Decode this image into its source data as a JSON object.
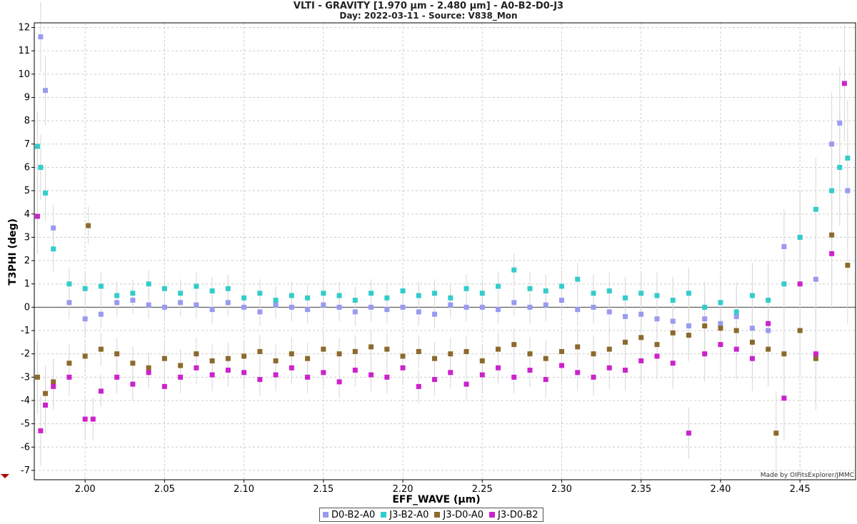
{
  "chart_data": {
    "type": "scatter",
    "title": "VLTI - GRAVITY [1.970 µm - 2.480 µm] - A0-B2-D0-J3",
    "subtitle": "Day: 2022-03-11 - Source: V838_Mon",
    "xlabel": "EFF_WAVE (µm)",
    "ylabel": "T3PHI (deg)",
    "xlim": [
      1.968,
      2.485
    ],
    "ylim": [
      -7.4,
      12.2
    ],
    "xticks": [
      2.0,
      2.05,
      2.1,
      2.15,
      2.2,
      2.25,
      2.3,
      2.35,
      2.4,
      2.45
    ],
    "xtick_labels": [
      "2.00",
      "2.05",
      "2.10",
      "2.15",
      "2.20",
      "2.25",
      "2.30",
      "2.35",
      "2.40",
      "2.45"
    ],
    "yticks": [
      -7,
      -6,
      -5,
      -4,
      -3,
      -2,
      -1,
      0,
      1,
      2,
      3,
      4,
      5,
      6,
      7,
      8,
      9,
      10,
      11,
      12
    ],
    "grid": true,
    "legend_position": "bottom-center",
    "credit": "Made by OIFitsExplorer/JMMC",
    "series": [
      {
        "name": "D0-B2-A0",
        "color": "#9a9af0",
        "x": [
          1.972,
          1.975,
          1.98,
          1.99,
          2.0,
          2.01,
          2.02,
          2.03,
          2.04,
          2.05,
          2.06,
          2.07,
          2.08,
          2.09,
          2.1,
          2.11,
          2.12,
          2.13,
          2.14,
          2.15,
          2.16,
          2.17,
          2.18,
          2.19,
          2.2,
          2.21,
          2.22,
          2.23,
          2.24,
          2.25,
          2.26,
          2.27,
          2.28,
          2.29,
          2.3,
          2.31,
          2.32,
          2.33,
          2.34,
          2.35,
          2.36,
          2.37,
          2.38,
          2.39,
          2.4,
          2.41,
          2.42,
          2.43,
          2.44,
          2.45,
          2.46,
          2.47,
          2.475,
          2.48
        ],
        "y": [
          11.6,
          9.3,
          3.4,
          0.2,
          -0.5,
          -0.3,
          0.2,
          0.3,
          0.1,
          0.0,
          0.2,
          0.1,
          -0.1,
          0.2,
          0.0,
          -0.2,
          0.1,
          0.0,
          -0.1,
          0.1,
          0.0,
          -0.2,
          0.0,
          -0.1,
          0.0,
          -0.2,
          -0.3,
          0.1,
          0.0,
          0.0,
          -0.1,
          0.2,
          0.0,
          0.1,
          0.3,
          -0.1,
          0.0,
          -0.2,
          -0.4,
          -0.3,
          -0.5,
          -0.6,
          -0.8,
          -0.5,
          -0.7,
          -0.4,
          -0.9,
          -1.0,
          2.6,
          3.0,
          1.2,
          7.0,
          7.9,
          5.0
        ],
        "errors": [
          1.5,
          1.5,
          1.0,
          0.7,
          0.7,
          0.6,
          0.6,
          0.6,
          0.6,
          0.6,
          0.6,
          0.6,
          0.6,
          0.6,
          0.6,
          0.6,
          0.6,
          0.6,
          0.6,
          0.6,
          0.6,
          0.6,
          0.6,
          0.6,
          0.6,
          0.6,
          0.6,
          0.6,
          0.6,
          0.6,
          0.6,
          0.6,
          0.7,
          0.7,
          0.7,
          0.7,
          0.7,
          0.8,
          0.8,
          0.9,
          0.9,
          1.0,
          1.0,
          1.1,
          1.1,
          1.2,
          1.3,
          1.4,
          1.6,
          1.8,
          2.0,
          2.2,
          2.4,
          2.5
        ]
      },
      {
        "name": "J3-B2-A0",
        "color": "#33cccc",
        "x": [
          1.97,
          1.972,
          1.975,
          1.98,
          1.99,
          2.0,
          2.01,
          2.02,
          2.03,
          2.04,
          2.05,
          2.06,
          2.07,
          2.08,
          2.09,
          2.1,
          2.11,
          2.12,
          2.13,
          2.14,
          2.15,
          2.16,
          2.17,
          2.18,
          2.19,
          2.2,
          2.21,
          2.22,
          2.23,
          2.24,
          2.25,
          2.26,
          2.27,
          2.28,
          2.29,
          2.3,
          2.31,
          2.32,
          2.33,
          2.34,
          2.35,
          2.36,
          2.37,
          2.38,
          2.39,
          2.4,
          2.41,
          2.42,
          2.43,
          2.44,
          2.45,
          2.46,
          2.47,
          2.475,
          2.48
        ],
        "y": [
          6.9,
          6.0,
          4.9,
          2.5,
          1.0,
          0.8,
          0.9,
          0.5,
          0.6,
          1.0,
          0.8,
          0.6,
          0.9,
          0.7,
          0.8,
          0.4,
          0.6,
          0.3,
          0.5,
          0.4,
          0.6,
          0.5,
          0.3,
          0.6,
          0.4,
          0.7,
          0.5,
          0.6,
          0.4,
          0.8,
          0.6,
          0.9,
          1.6,
          0.8,
          0.7,
          0.9,
          1.2,
          0.6,
          0.7,
          0.4,
          0.6,
          0.5,
          0.3,
          0.6,
          0.0,
          0.2,
          -0.2,
          0.5,
          0.3,
          1.0,
          3.0,
          4.2,
          5.0,
          6.0,
          6.4
        ],
        "errors": [
          1.5,
          1.4,
          1.2,
          1.0,
          0.7,
          0.7,
          0.6,
          0.6,
          0.6,
          0.6,
          0.6,
          0.6,
          0.6,
          0.6,
          0.6,
          0.6,
          0.6,
          0.6,
          0.6,
          0.6,
          0.6,
          0.6,
          0.6,
          0.6,
          0.6,
          0.6,
          0.6,
          0.6,
          0.6,
          0.6,
          0.6,
          0.6,
          0.7,
          0.7,
          0.7,
          0.7,
          0.7,
          0.8,
          0.8,
          0.9,
          0.9,
          1.0,
          1.0,
          1.1,
          1.1,
          1.2,
          1.3,
          1.4,
          1.6,
          1.8,
          2.0,
          2.2,
          2.4,
          2.5,
          2.5
        ]
      },
      {
        "name": "J3-D0-A0",
        "color": "#8c6a2c",
        "x": [
          1.97,
          1.975,
          1.98,
          1.99,
          2.0,
          2.002,
          2.01,
          2.02,
          2.03,
          2.04,
          2.05,
          2.06,
          2.07,
          2.08,
          2.09,
          2.1,
          2.11,
          2.12,
          2.13,
          2.14,
          2.15,
          2.16,
          2.17,
          2.18,
          2.19,
          2.2,
          2.21,
          2.22,
          2.23,
          2.24,
          2.25,
          2.26,
          2.27,
          2.28,
          2.29,
          2.3,
          2.31,
          2.32,
          2.33,
          2.34,
          2.35,
          2.36,
          2.37,
          2.38,
          2.39,
          2.4,
          2.41,
          2.42,
          2.43,
          2.435,
          2.44,
          2.45,
          2.46,
          2.47,
          2.48
        ],
        "y": [
          -3.0,
          -3.7,
          -3.2,
          -2.4,
          -2.1,
          3.5,
          -1.8,
          -2.0,
          -2.4,
          -2.6,
          -2.2,
          -2.5,
          -2.0,
          -2.3,
          -2.2,
          -2.1,
          -1.9,
          -2.3,
          -2.0,
          -2.2,
          -1.8,
          -2.0,
          -1.9,
          -1.7,
          -1.8,
          -2.1,
          -1.9,
          -2.2,
          -2.0,
          -1.9,
          -2.3,
          -1.8,
          -1.6,
          -2.0,
          -2.2,
          -1.9,
          -1.7,
          -2.0,
          -1.8,
          -1.5,
          -1.3,
          -1.6,
          -1.1,
          -1.2,
          -0.8,
          -0.9,
          -1.0,
          -1.5,
          -1.8,
          -5.4,
          -2.0,
          -1.0,
          -2.2,
          3.1,
          1.8
        ],
        "errors": [
          1.6,
          1.2,
          1.0,
          0.8,
          0.7,
          0.8,
          0.7,
          0.7,
          0.7,
          0.7,
          0.7,
          0.7,
          0.7,
          0.7,
          0.7,
          0.7,
          0.7,
          0.7,
          0.7,
          0.7,
          0.7,
          0.7,
          0.7,
          0.7,
          0.7,
          0.7,
          0.7,
          0.7,
          0.7,
          0.7,
          0.7,
          0.7,
          0.7,
          0.7,
          0.8,
          0.8,
          0.8,
          0.8,
          0.9,
          0.9,
          1.0,
          1.0,
          1.1,
          1.1,
          1.2,
          1.2,
          1.3,
          1.4,
          1.6,
          1.8,
          1.9,
          2.0,
          2.2,
          2.4,
          2.5
        ]
      },
      {
        "name": "J3-D0-B2",
        "color": "#cc22cc",
        "x": [
          1.97,
          1.972,
          1.975,
          1.98,
          1.99,
          2.0,
          2.005,
          2.01,
          2.02,
          2.03,
          2.04,
          2.05,
          2.06,
          2.07,
          2.08,
          2.09,
          2.1,
          2.11,
          2.12,
          2.13,
          2.14,
          2.15,
          2.16,
          2.17,
          2.18,
          2.19,
          2.2,
          2.21,
          2.22,
          2.23,
          2.24,
          2.25,
          2.26,
          2.27,
          2.28,
          2.29,
          2.3,
          2.31,
          2.32,
          2.33,
          2.34,
          2.35,
          2.36,
          2.37,
          2.38,
          2.39,
          2.4,
          2.41,
          2.42,
          2.43,
          2.44,
          2.45,
          2.46,
          2.47,
          2.478
        ],
        "y": [
          3.9,
          -5.3,
          -4.2,
          -3.4,
          -3.0,
          -4.8,
          -4.8,
          -3.6,
          -3.0,
          -3.3,
          -2.8,
          -3.4,
          -3.0,
          -2.6,
          -2.9,
          -2.7,
          -2.8,
          -3.1,
          -2.9,
          -2.6,
          -3.0,
          -2.8,
          -3.2,
          -2.7,
          -2.9,
          -3.0,
          -2.6,
          -3.4,
          -3.1,
          -2.8,
          -3.3,
          -2.9,
          -2.6,
          -3.0,
          -2.7,
          -3.1,
          -2.5,
          -2.8,
          -3.0,
          -2.6,
          -2.7,
          -2.3,
          -2.1,
          -2.4,
          -5.4,
          -2.0,
          -1.6,
          -1.8,
          -2.2,
          -0.7,
          -3.9,
          1.0,
          -2.0,
          2.3,
          9.6
        ],
        "errors": [
          1.6,
          1.5,
          1.2,
          1.0,
          0.8,
          0.9,
          0.9,
          0.7,
          0.7,
          0.7,
          0.7,
          0.7,
          0.7,
          0.7,
          0.7,
          0.7,
          0.7,
          0.7,
          0.7,
          0.7,
          0.7,
          0.7,
          0.7,
          0.7,
          0.7,
          0.7,
          0.7,
          0.7,
          0.7,
          0.7,
          0.7,
          0.7,
          0.7,
          0.7,
          0.7,
          0.8,
          0.8,
          0.8,
          0.8,
          0.9,
          0.9,
          1.0,
          1.0,
          1.1,
          1.1,
          1.2,
          1.2,
          1.3,
          1.4,
          1.6,
          1.8,
          2.0,
          2.2,
          2.4,
          2.5
        ]
      }
    ]
  }
}
